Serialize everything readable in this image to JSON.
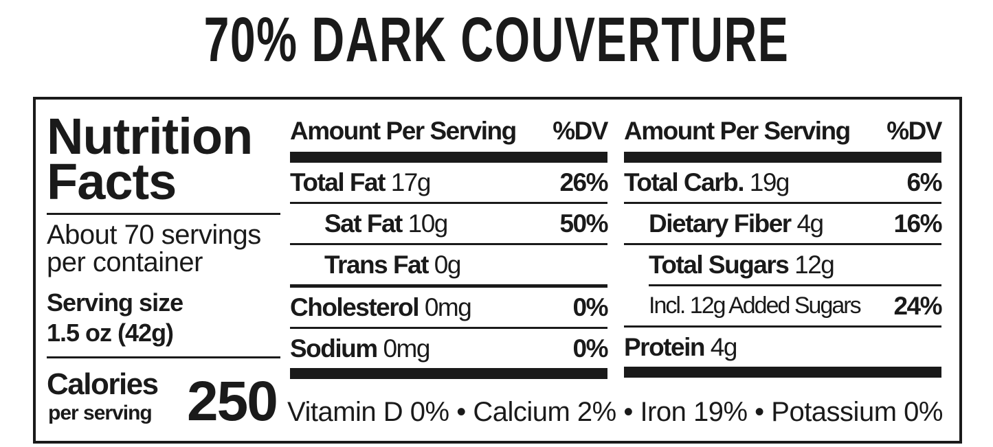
{
  "title": "70% DARK COUVERTURE",
  "panel": {
    "heading": "Nutrition Facts",
    "servings": "About 70 servings per container",
    "serving_size_label": "Serving size",
    "serving_size": "1.5 oz (42g)",
    "calories_label": "Calories",
    "calories_sublabel": "per serving",
    "calories": "250"
  },
  "columns": [
    {
      "header": "Amount Per Serving",
      "dv_header": "%DV",
      "rows": [
        {
          "name": "Total Fat",
          "amount": "17g",
          "dv": "26%"
        },
        {
          "name": "Sat Fat",
          "amount": "10g",
          "dv": "50%"
        },
        {
          "name": "Trans Fat",
          "amount": "0g"
        },
        {
          "name": "Cholesterol",
          "amount": "0mg",
          "dv": "0%"
        },
        {
          "name": "Sodium",
          "amount": "0mg",
          "dv": "0%"
        }
      ]
    },
    {
      "header": "Amount Per Serving",
      "dv_header": "%DV",
      "rows": [
        {
          "name": "Total Carb.",
          "amount": "19g",
          "dv": "6%"
        },
        {
          "name": "Dietary Fiber",
          "amount": "4g",
          "dv": "16%"
        },
        {
          "name": "Total Sugars",
          "amount": "12g"
        },
        {
          "amount": "Incl. 12g Added Sugars",
          "dv": "24%"
        },
        {
          "name": "Protein",
          "amount": "4g"
        }
      ]
    }
  ],
  "footer": "Vitamin D 0% • Calcium 2% • Iron 19% • Potassium 0%"
}
